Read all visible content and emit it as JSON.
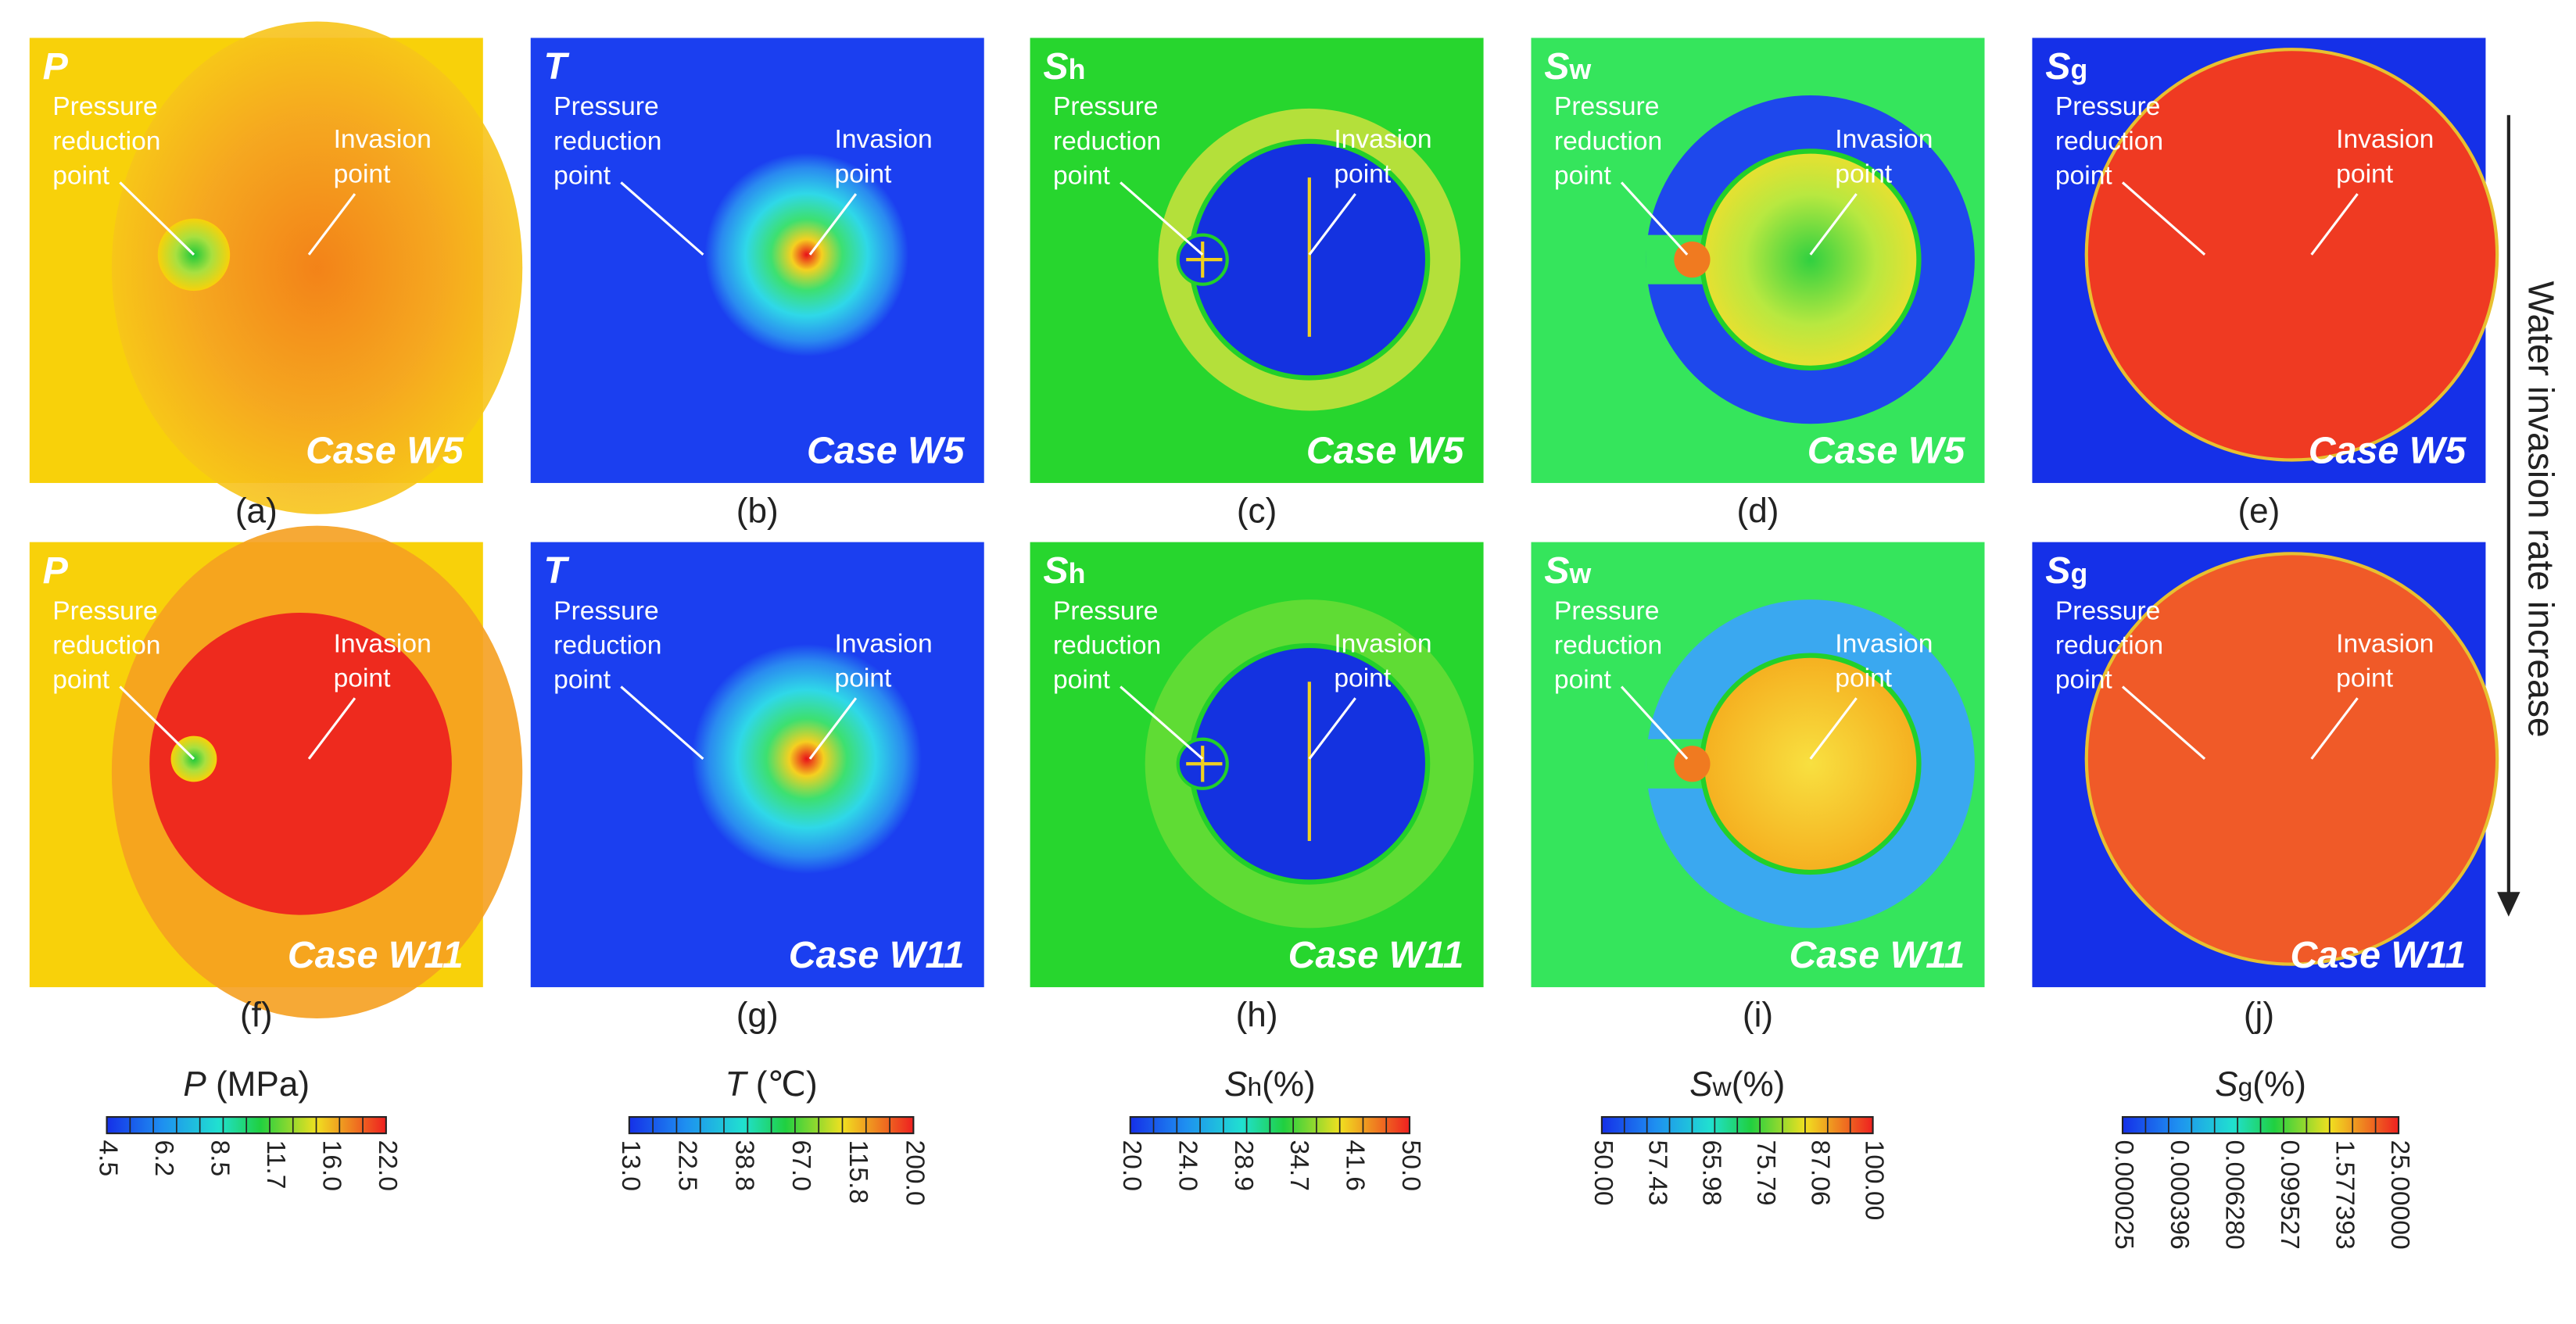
{
  "panels": [
    {
      "symbol": "P",
      "case": "Case W5",
      "label": "(a)",
      "pressure_text": [
        "Pressure",
        "reduction",
        "point"
      ],
      "invasion_text": [
        "Invasion",
        "point"
      ]
    },
    {
      "symbol": "T",
      "case": "Case W5",
      "label": "(b)",
      "pressure_text": [
        "Pressure",
        "reduction",
        "point"
      ],
      "invasion_text": [
        "Invasion",
        "point"
      ]
    },
    {
      "symbol": "S",
      "subscript": "h",
      "case": "Case W5",
      "label": "(c)",
      "pressure_text": [
        "Pressure",
        "reduction",
        "point"
      ],
      "invasion_text": [
        "Invasion",
        "point"
      ]
    },
    {
      "symbol": "S",
      "subscript": "w",
      "case": "Case W5",
      "label": "(d)",
      "pressure_text": [
        "Pressure",
        "reduction",
        "point"
      ],
      "invasion_text": [
        "Invasion",
        "point"
      ]
    },
    {
      "symbol": "S",
      "subscript": "g",
      "case": "Case W5",
      "label": "(e)",
      "pressure_text": [
        "Pressure",
        "reduction",
        "point"
      ],
      "invasion_text": [
        "Invasion",
        "point"
      ]
    },
    {
      "symbol": "P",
      "case": "Case W11",
      "label": "(f)",
      "pressure_text": [
        "Pressure",
        "reduction",
        "point"
      ],
      "invasion_text": [
        "Invasion",
        "point"
      ]
    },
    {
      "symbol": "T",
      "case": "Case W11",
      "label": "(g)",
      "pressure_text": [
        "Pressure",
        "reduction",
        "point"
      ],
      "invasion_text": [
        "Invasion",
        "point"
      ]
    },
    {
      "symbol": "S",
      "subscript": "h",
      "case": "Case W11",
      "label": "(h)",
      "pressure_text": [
        "Pressure",
        "reduction",
        "point"
      ],
      "invasion_text": [
        "Invasion",
        "point"
      ]
    },
    {
      "symbol": "S",
      "subscript": "w",
      "case": "Case W11",
      "label": "(i)",
      "pressure_text": [
        "Pressure",
        "reduction",
        "point"
      ],
      "invasion_text": [
        "Invasion",
        "point"
      ]
    },
    {
      "symbol": "S",
      "subscript": "g",
      "case": "Case W11",
      "label": "(j)",
      "pressure_text": [
        "Pressure",
        "reduction",
        "point"
      ],
      "invasion_text": [
        "Invasion",
        "point"
      ]
    }
  ],
  "colorbars": [
    {
      "symbol": "P",
      "unit": " (MPa)",
      "ticks": [
        "4.5",
        "6.2",
        "8.5",
        "11.7",
        "16.0",
        "22.0"
      ]
    },
    {
      "symbol": "T",
      "unit": " (℃)",
      "ticks": [
        "13.0",
        "22.5",
        "38.8",
        "67.0",
        "115.8",
        "200.0"
      ]
    },
    {
      "symbol": "S",
      "subscript": "h",
      "unit": "(%)",
      "ticks": [
        "20.0",
        "24.0",
        "28.9",
        "34.7",
        "41.6",
        "50.0"
      ]
    },
    {
      "symbol": "S",
      "subscript": "w",
      "unit": "(%)",
      "ticks": [
        "50.00",
        "57.43",
        "65.98",
        "75.79",
        "87.06",
        "100.00"
      ]
    },
    {
      "symbol": "S",
      "subscript": "g",
      "unit": "(%)",
      "ticks": [
        "0.000025",
        "0.000396",
        "0.006280",
        "0.099527",
        "1.577393",
        "25.00000"
      ]
    }
  ],
  "side_text": "Water invasion rate increase"
}
